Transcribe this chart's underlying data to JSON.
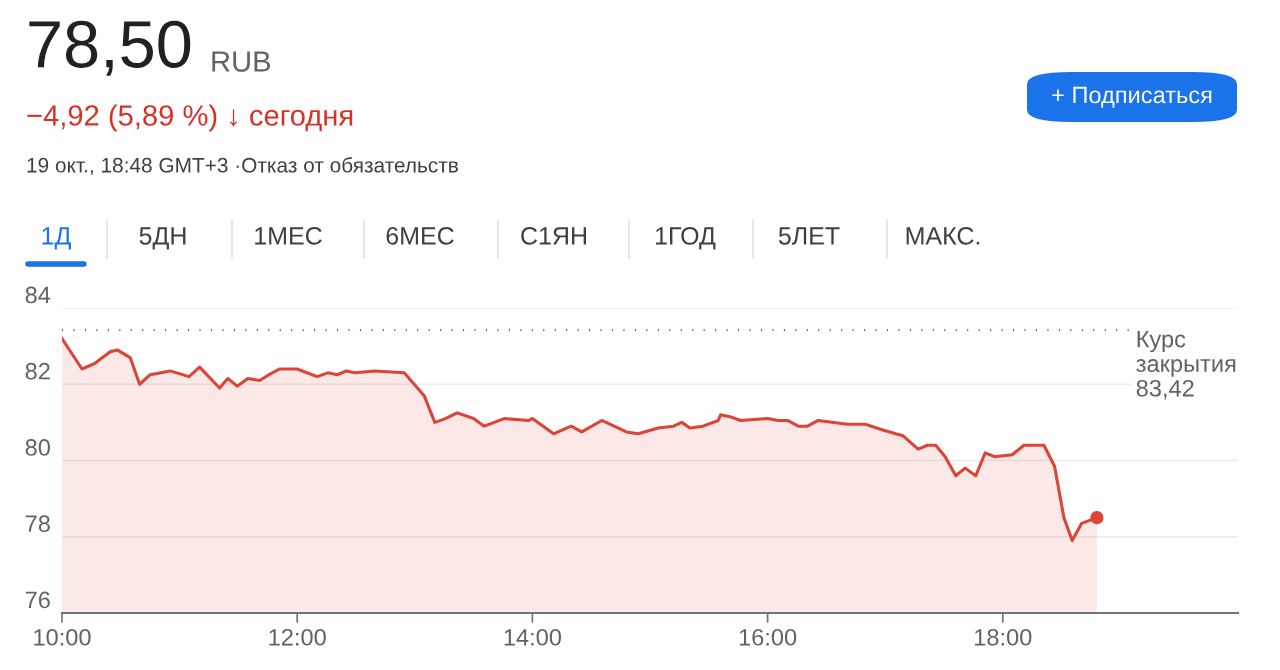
{
  "chart_data": {
    "type": "area",
    "title": "78,50",
    "annotations": [
      "RUB",
      "−4,92 (5,89 %) ↓ сегодня",
      "19 окт., 18:48 GMT+3 ·Отказ от обязательств",
      "1Д",
      "5ДН",
      "1МЕС",
      "6МЕС",
      "С1ЯН",
      "1ГОД",
      "5ЛЕТ",
      "МАКС.",
      "+ Подписаться"
    ],
    "xlim": [
      10,
      20
    ],
    "ylim": [
      76,
      84
    ],
    "xticks": [
      {
        "value": 10,
        "label": "10:00"
      },
      {
        "value": 12,
        "label": "12:00"
      },
      {
        "value": 14,
        "label": "14:00"
      },
      {
        "value": 16,
        "label": "16:00"
      },
      {
        "value": 18,
        "label": "18:00"
      }
    ],
    "yticks": [
      76,
      78,
      80,
      82,
      84
    ],
    "grid": "y",
    "legend": false,
    "ref_lines": [
      {
        "axis": "y",
        "value": 83.42,
        "label": "Курс\nзакрытия\n83,42",
        "color": "#5f6368",
        "line_style": "dotted"
      }
    ],
    "series": [
      {
        "color": "#db4437",
        "x": [
          10.0,
          10.17,
          10.28,
          10.41,
          10.47,
          10.58,
          10.66,
          10.75,
          10.92,
          11.08,
          11.17,
          11.34,
          11.41,
          11.49,
          11.58,
          11.68,
          11.76,
          11.85,
          12.0,
          12.17,
          12.26,
          12.34,
          12.42,
          12.49,
          12.66,
          12.91,
          13.08,
          13.17,
          13.26,
          13.36,
          13.5,
          13.59,
          13.76,
          13.97,
          14.0,
          14.18,
          14.33,
          14.42,
          14.59,
          14.8,
          14.9,
          15.07,
          15.2,
          15.27,
          15.34,
          15.45,
          15.58,
          15.6,
          15.68,
          15.77,
          16.0,
          16.09,
          16.17,
          16.26,
          16.34,
          16.43,
          16.68,
          16.83,
          16.98,
          17.09,
          17.15,
          17.28,
          17.36,
          17.43,
          17.51,
          17.6,
          17.68,
          17.77,
          17.85,
          17.93,
          18.08,
          18.18,
          18.35,
          18.44,
          18.52,
          18.59,
          18.67,
          18.8
        ],
        "values": [
          83.2,
          82.4,
          82.55,
          82.85,
          82.9,
          82.7,
          82.0,
          82.25,
          82.35,
          82.2,
          82.45,
          81.9,
          82.15,
          81.95,
          82.15,
          82.1,
          82.25,
          82.4,
          82.4,
          82.2,
          82.3,
          82.25,
          82.35,
          82.3,
          82.35,
          82.3,
          81.7,
          81.0,
          81.1,
          81.25,
          81.1,
          80.9,
          81.1,
          81.05,
          81.1,
          80.7,
          80.9,
          80.75,
          81.05,
          80.75,
          80.7,
          80.85,
          80.9,
          81.0,
          80.85,
          80.9,
          81.05,
          81.2,
          81.15,
          81.05,
          81.1,
          81.05,
          81.05,
          80.9,
          80.9,
          81.05,
          80.95,
          80.95,
          80.8,
          80.7,
          80.65,
          80.3,
          80.4,
          80.4,
          80.1,
          79.6,
          79.8,
          79.6,
          80.2,
          80.1,
          80.15,
          80.4,
          80.4,
          79.85,
          78.5,
          77.9,
          78.35,
          78.5
        ]
      },
      {
        "type": "scatter",
        "color": "#db4437",
        "x": [
          18.8
        ],
        "values": [
          78.5
        ]
      }
    ]
  }
}
